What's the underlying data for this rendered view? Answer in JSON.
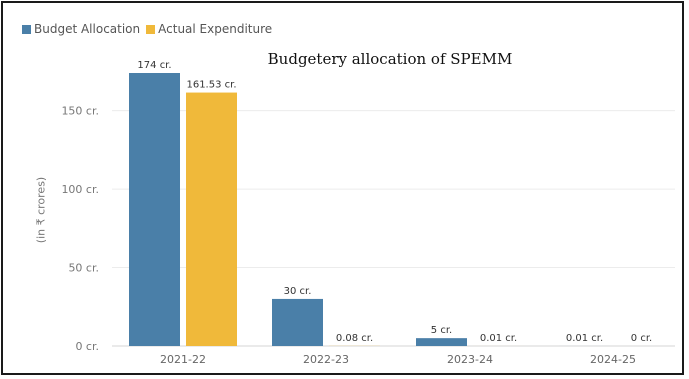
{
  "chart_data": {
    "type": "bar",
    "title": "Budgetery allocation of SPEMM",
    "ylabel": "(in ₹ crores)",
    "xlabel": "",
    "categories": [
      "2021-22",
      "2022-23",
      "2023-24",
      "2024-25"
    ],
    "series": [
      {
        "name": "Budget Allocation",
        "color": "#4a7fa8",
        "values": [
          174,
          30,
          5,
          0.01
        ],
        "labels": [
          "174 cr.",
          "30 cr.",
          "5 cr.",
          "0.01 cr."
        ]
      },
      {
        "name": "Actual Expenditure",
        "color": "#f0b93a",
        "values": [
          161.53,
          0.08,
          0.01,
          0
        ],
        "labels": [
          "161.53 cr.",
          "0.08 cr.",
          "0.01 cr.",
          "0 cr."
        ]
      }
    ],
    "yticks": [
      0,
      50,
      100,
      150
    ],
    "ytick_labels": [
      "0 cr.",
      "50 cr.",
      "100 cr.",
      "150 cr."
    ],
    "ylim": [
      0,
      174
    ],
    "grid": true,
    "legend_position": "top-left"
  }
}
